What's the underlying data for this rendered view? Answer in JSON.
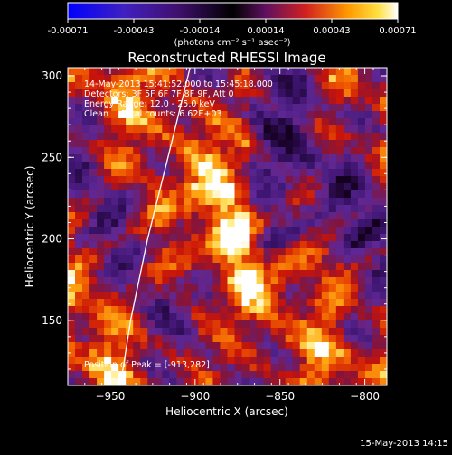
{
  "colorbar": {
    "tick_labels": [
      "-0.00071",
      "-0.00043",
      "-0.00014",
      "0.00014",
      "0.00043",
      "0.00071"
    ],
    "units_label": "(photons cm⁻² s⁻¹ asec⁻²)",
    "range": [
      -0.00071,
      0.00071
    ]
  },
  "chart_data": {
    "type": "heatmap",
    "title": "Reconstructed RHESSI Image",
    "xlabel": "Heliocentric X (arcsec)",
    "ylabel": "Heliocentric Y (arcsec)",
    "xlim": [
      -975,
      -787
    ],
    "ylim": [
      110,
      305
    ],
    "x_ticks": [
      -950,
      -900,
      -850,
      -800
    ],
    "y_ticks": [
      150,
      200,
      250,
      300
    ],
    "annotations": [
      "14-May-2013 15:41:52.000 to 15:45:18.000",
      "Detectors: 3F 5F 6F 7F 8F 9F, Att 0",
      "Energy Range: 12.0 - 25.0 keV",
      "Clean     Total counts: 6.62E+03"
    ],
    "peak_label": "Position of Peak = [-913,282]",
    "peak": [
      -913,
      282
    ],
    "limb_line": [
      [
        -944,
        110
      ],
      [
        -938,
        150
      ],
      [
        -928,
        200
      ],
      [
        -916,
        250
      ],
      [
        -903,
        305
      ]
    ],
    "colormap": "black-purple-red-orange-yellow-white",
    "notes_on_values": "image intensity values in photons cm-2 s-1 asec-2"
  },
  "footer_timestamp": "15-May-2013 14:15"
}
